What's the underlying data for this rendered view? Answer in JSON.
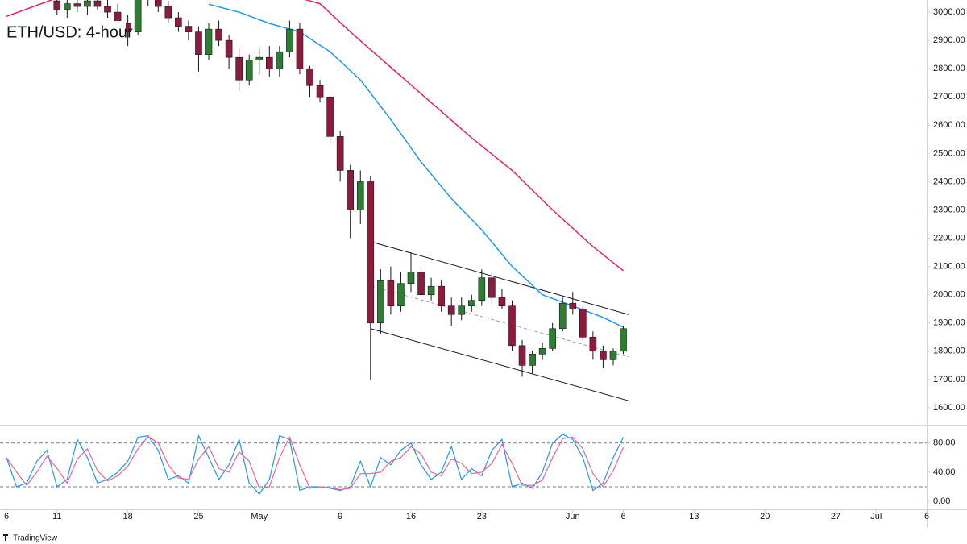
{
  "watermark": "TradingView",
  "chart_data": [
    {
      "type": "candlestick",
      "title": "ETH/USD: 4-hour",
      "xlim": [
        -0.64,
        91
      ],
      "xticks": [
        {
          "value": 0,
          "label": "6"
        },
        {
          "value": 5,
          "label": "11"
        },
        {
          "value": 12,
          "label": "18"
        },
        {
          "value": 19,
          "label": "25"
        },
        {
          "value": 25,
          "label": "May"
        },
        {
          "value": 33,
          "label": "9"
        },
        {
          "value": 40,
          "label": "16"
        },
        {
          "value": 47,
          "label": "23"
        },
        {
          "value": 56,
          "label": "Jun"
        },
        {
          "value": 61,
          "label": "6"
        },
        {
          "value": 68,
          "label": "13"
        },
        {
          "value": 75,
          "label": "20"
        },
        {
          "value": 82,
          "label": "27"
        },
        {
          "value": 86,
          "label": "Jul"
        },
        {
          "value": 91,
          "label": "6"
        }
      ],
      "ylim": [
        1540,
        3043
      ],
      "yticks": [
        {
          "value": 1600,
          "label": "1600.00"
        },
        {
          "value": 1700,
          "label": "1700.00"
        },
        {
          "value": 1800,
          "label": "1800.00"
        },
        {
          "value": 1900,
          "label": "1900.00"
        },
        {
          "value": 2000,
          "label": "2000.00"
        },
        {
          "value": 2100,
          "label": "2100.00"
        },
        {
          "value": 2200,
          "label": "2200.00"
        },
        {
          "value": 2300,
          "label": "2300.00"
        },
        {
          "value": 2400,
          "label": "2400.00"
        },
        {
          "value": 2500,
          "label": "2500.00"
        },
        {
          "value": 2600,
          "label": "2600.00"
        },
        {
          "value": 2700,
          "label": "2700.00"
        },
        {
          "value": 2800,
          "label": "2800.00"
        },
        {
          "value": 2900,
          "label": "2900.00"
        },
        {
          "value": 3000,
          "label": "3000.00"
        }
      ],
      "up_color": "#2e7d32",
      "down_color": "#8e1b3c",
      "x": [
        5,
        6,
        7,
        8,
        9,
        10,
        11,
        12,
        13,
        14,
        15,
        16,
        17,
        18,
        19,
        20,
        21,
        22,
        23,
        24,
        25,
        26,
        27,
        28,
        29,
        30,
        31,
        32,
        33,
        34,
        35,
        36,
        37,
        38,
        39,
        40,
        41,
        42,
        43,
        44,
        45,
        46,
        47,
        48,
        49,
        50,
        51,
        52,
        53,
        54,
        55,
        56,
        57,
        58,
        59,
        60,
        61
      ],
      "open": [
        3040,
        3010,
        3030,
        3020,
        3040,
        3020,
        3000,
        2960,
        2930,
        3050,
        3060,
        3020,
        2980,
        2950,
        2930,
        2850,
        2940,
        2900,
        2840,
        2760,
        2830,
        2840,
        2800,
        2860,
        2940,
        2800,
        2740,
        2700,
        2560,
        2440,
        2300,
        2400,
        1900,
        2050,
        1960,
        2040,
        2080,
        2000,
        2030,
        1960,
        1930,
        1960,
        1980,
        2060,
        1990,
        1960,
        1820,
        1750,
        1790,
        1810,
        1880,
        1970,
        1950,
        1850,
        1800,
        1770,
        1800
      ],
      "high": [
        3060,
        3050,
        3060,
        3050,
        3070,
        3050,
        3030,
        2990,
        3060,
        3080,
        3080,
        3040,
        3000,
        2970,
        2950,
        2960,
        2970,
        2920,
        2870,
        2850,
        2870,
        2880,
        2880,
        2970,
        2960,
        2810,
        2760,
        2710,
        2580,
        2460,
        2440,
        2420,
        2090,
        2100,
        2080,
        2150,
        2100,
        2060,
        2050,
        1990,
        1990,
        2000,
        2090,
        2080,
        2020,
        1980,
        1840,
        1800,
        1830,
        1900,
        1990,
        2010,
        1960,
        1870,
        1820,
        1810,
        1890
      ],
      "low": [
        2990,
        2980,
        3000,
        2990,
        3010,
        2980,
        2930,
        2880,
        2920,
        3020,
        3000,
        2960,
        2930,
        2900,
        2790,
        2830,
        2880,
        2800,
        2720,
        2740,
        2780,
        2770,
        2770,
        2840,
        2780,
        2700,
        2680,
        2540,
        2400,
        2200,
        2250,
        1700,
        1860,
        1930,
        1940,
        2010,
        1970,
        1980,
        1940,
        1890,
        1910,
        1940,
        1960,
        1970,
        1950,
        1800,
        1710,
        1720,
        1770,
        1800,
        1870,
        1930,
        1840,
        1770,
        1740,
        1750,
        1790
      ],
      "close": [
        3010,
        3030,
        3020,
        3040,
        3020,
        3000,
        2960,
        2930,
        3050,
        3060,
        3020,
        2980,
        2950,
        2930,
        2850,
        2940,
        2900,
        2840,
        2760,
        2830,
        2840,
        2800,
        2860,
        2940,
        2800,
        2740,
        2700,
        2560,
        2440,
        2300,
        2400,
        1900,
        2050,
        1960,
        2040,
        2080,
        2000,
        2030,
        1960,
        1930,
        1960,
        1980,
        2060,
        1990,
        1960,
        1820,
        1750,
        1790,
        1810,
        1880,
        1970,
        1950,
        1850,
        1800,
        1770,
        1800,
        1880
      ],
      "series": [
        {
          "color": "#2196f3",
          "x": [
            20,
            23,
            26,
            29,
            32,
            35,
            38,
            41,
            44,
            47,
            50,
            53,
            56,
            59,
            61
          ],
          "values": [
            3028,
            3000,
            2960,
            2930,
            2860,
            2760,
            2620,
            2470,
            2340,
            2230,
            2100,
            2000,
            1960,
            1920,
            1885
          ]
        },
        {
          "color": "#e91e63",
          "x": [
            0,
            5,
            15,
            25,
            31,
            34,
            38,
            42,
            46,
            50,
            54,
            58,
            61
          ],
          "values": [
            2985,
            3050,
            3110,
            3090,
            3030,
            2930,
            2805,
            2680,
            2555,
            2440,
            2300,
            2170,
            2085
          ]
        }
      ],
      "annotations": [
        {
          "x": [
            36.3,
            61.5
          ],
          "y": [
            2185,
            1930
          ],
          "color": "#131722",
          "dashed": false
        },
        {
          "x": [
            36,
            61.5
          ],
          "y": [
            1880,
            1625
          ],
          "color": "#131722",
          "dashed": false
        },
        {
          "x": [
            36.1,
            61.5
          ],
          "y": [
            2030,
            1780
          ],
          "color": "#9e9e9e",
          "dashed": true
        }
      ]
    },
    {
      "type": "line",
      "ylim": [
        -11,
        104
      ],
      "yticks": [
        {
          "value": 0,
          "label": "0.00"
        },
        {
          "value": 40,
          "label": "40.00"
        },
        {
          "value": 80,
          "label": "80.00"
        }
      ],
      "levels": [
        80,
        20
      ],
      "x": [
        0,
        1,
        2,
        3,
        4,
        5,
        6,
        7,
        8,
        9,
        10,
        11,
        12,
        13,
        14,
        15,
        16,
        17,
        18,
        19,
        20,
        21,
        22,
        23,
        24,
        25,
        26,
        27,
        28,
        29,
        30,
        31,
        32,
        33,
        34,
        35,
        36,
        37,
        38,
        39,
        40,
        41,
        42,
        43,
        44,
        45,
        46,
        47,
        48,
        49,
        50,
        51,
        52,
        53,
        54,
        55,
        56,
        57,
        58,
        59,
        60,
        61
      ],
      "series": [
        {
          "color": "#2196f3",
          "values": [
            60,
            20,
            25,
            55,
            70,
            20,
            30,
            85,
            60,
            25,
            30,
            40,
            55,
            88,
            90,
            70,
            30,
            35,
            25,
            90,
            60,
            30,
            50,
            85,
            25,
            10,
            30,
            90,
            85,
            15,
            20,
            20,
            18,
            15,
            20,
            55,
            20,
            60,
            50,
            70,
            80,
            50,
            30,
            40,
            75,
            30,
            45,
            35,
            70,
            85,
            20,
            25,
            18,
            40,
            80,
            92,
            85,
            60,
            15,
            25,
            60,
            88
          ]
        },
        {
          "color": "#f06292",
          "values": [
            60,
            40,
            22,
            40,
            62,
            45,
            25,
            58,
            72,
            42,
            28,
            35,
            48,
            72,
            89,
            80,
            50,
            32,
            30,
            58,
            75,
            45,
            40,
            68,
            55,
            18,
            20,
            60,
            88,
            50,
            18,
            20,
            19,
            16,
            18,
            38,
            38,
            40,
            55,
            60,
            75,
            65,
            40,
            35,
            58,
            52,
            38,
            40,
            52,
            78,
            52,
            22,
            22,
            29,
            60,
            86,
            88,
            72,
            38,
            20,
            42,
            74
          ]
        }
      ]
    }
  ]
}
